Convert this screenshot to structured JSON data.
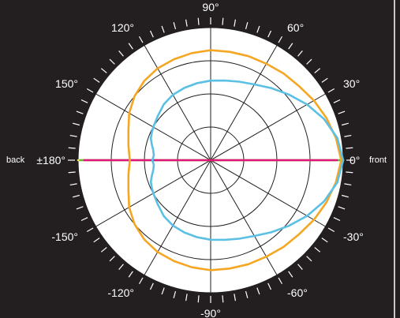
{
  "chart_data": {
    "type": "polar-line",
    "angle_labels": [
      {
        "angle": 90,
        "text": "90°"
      },
      {
        "angle": 60,
        "text": "60°"
      },
      {
        "angle": 30,
        "text": "30°"
      },
      {
        "angle": 0,
        "text": "0°"
      },
      {
        "angle": -30,
        "text": "-30°"
      },
      {
        "angle": -60,
        "text": "-60°"
      },
      {
        "angle": -90,
        "text": "-90°"
      },
      {
        "angle": -120,
        "text": "-120°"
      },
      {
        "angle": -150,
        "text": "-150°"
      },
      {
        "angle": 180,
        "text": "±180°"
      },
      {
        "angle": 150,
        "text": "150°"
      },
      {
        "angle": 120,
        "text": "120°"
      }
    ],
    "side_labels": {
      "front": "front",
      "back": "back"
    },
    "grid": {
      "rings": 4,
      "spoke_step_deg": 30,
      "tick_step_deg": 5
    },
    "rlim": [
      0,
      1
    ],
    "series": [
      {
        "color": "#f2ee5e",
        "angles": [
          0,
          180
        ],
        "values": [
          1.0,
          1.0
        ]
      },
      {
        "color": "#6ab33f",
        "angles": [
          0,
          180
        ],
        "values": [
          0.985,
          0.985
        ]
      },
      {
        "color": "#e0157a",
        "angles": [
          0,
          180
        ],
        "values": [
          0.953,
          0.953
        ]
      },
      {
        "color": "#f5a623",
        "angles": [
          0,
          10,
          20,
          30,
          40,
          50,
          60,
          70,
          80,
          90,
          100,
          110,
          120,
          130,
          140,
          150,
          160,
          170,
          180
        ],
        "values": [
          0.985,
          0.96,
          0.93,
          0.9,
          0.87,
          0.855,
          0.84,
          0.835,
          0.83,
          0.83,
          0.82,
          0.81,
          0.8,
          0.78,
          0.75,
          0.71,
          0.66,
          0.63,
          0.61
        ]
      },
      {
        "color": "#5bc0e4",
        "angles": [
          0,
          10,
          20,
          30,
          40,
          50,
          60,
          70,
          80,
          90,
          100,
          110,
          120,
          130,
          140,
          150,
          155,
          160,
          165,
          170,
          175,
          180
        ],
        "values": [
          1.0,
          0.97,
          0.91,
          0.84,
          0.77,
          0.71,
          0.66,
          0.63,
          0.61,
          0.6,
          0.59,
          0.58,
          0.57,
          0.55,
          0.52,
          0.5,
          0.49,
          0.48,
          0.46,
          0.44,
          0.43,
          0.44
        ]
      }
    ],
    "colors": {
      "background": "#231f20",
      "plot_face": "#ffffff",
      "grid": "#231f20",
      "text": "#ffffff",
      "tick": "#ffffff"
    }
  }
}
